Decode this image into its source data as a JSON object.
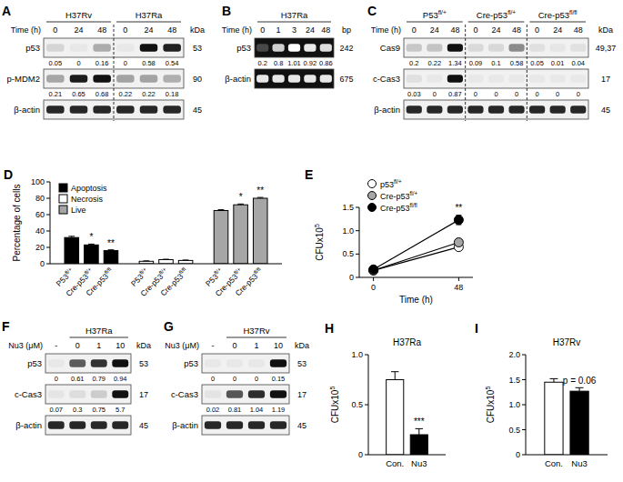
{
  "blots": [
    {
      "letter": "A",
      "type": "western_blot",
      "lane_label": "Time (h)",
      "unit_label": "kDa",
      "groups": [
        {
          "label": "H37Rv",
          "lanes": [
            0,
            24,
            48
          ]
        },
        {
          "label": "H37Ra",
          "lanes": [
            0,
            24,
            48
          ]
        }
      ],
      "rows": [
        {
          "name": "p53",
          "size": 53,
          "values": [
            0.05,
            0,
            0.16,
            0,
            0.58,
            0.54
          ]
        },
        {
          "name": "p-MDM2",
          "size": 90,
          "values": [
            0.21,
            0.65,
            0.68,
            0.22,
            0.22,
            0.18
          ]
        },
        {
          "name": "β-actin",
          "size": 45
        }
      ]
    },
    {
      "letter": "B",
      "type": "gel",
      "lane_label": "Time (h)",
      "unit_label": "bp",
      "groups": [
        {
          "label": "H37Ra",
          "lanes": [
            0,
            1,
            3,
            24,
            48
          ]
        }
      ],
      "rows": [
        {
          "name": "p53",
          "size": 242,
          "values": [
            0.2,
            0.8,
            1.01,
            0.92,
            0.86
          ]
        },
        {
          "name": "β-actin",
          "size": 675
        }
      ]
    },
    {
      "letter": "C",
      "type": "western_blot",
      "lane_label": "Time (h)",
      "unit_label": "kDa",
      "groups": [
        {
          "label": {
            "text": "P53",
            "sup": "fl/+"
          },
          "lanes": [
            0,
            24,
            48
          ]
        },
        {
          "label": {
            "text": "Cre-p53",
            "sup": "fl/+"
          },
          "lanes": [
            0,
            24,
            48
          ]
        },
        {
          "label": {
            "text": "Cre-p53",
            "sup": "fl/fl"
          },
          "lanes": [
            0,
            24,
            48
          ]
        }
      ],
      "rows": [
        {
          "name": "Cas9",
          "size": "49,37",
          "values": [
            0.2,
            0.22,
            1.34,
            0.09,
            0.1,
            0.58,
            0.05,
            0.01,
            0.04
          ]
        },
        {
          "name": "c-Cas3",
          "size": 17,
          "values": [
            0.03,
            0,
            0.87,
            0,
            0,
            0,
            0,
            0,
            0
          ]
        },
        {
          "name": "β-actin",
          "size": 45
        }
      ]
    },
    {
      "letter": "F",
      "type": "western_blot",
      "lane_label": "Nu3 (μM)",
      "unit_label": "kDa",
      "groups": [
        {
          "label": null,
          "lanes": [
            "-"
          ]
        },
        {
          "label": "H37Ra",
          "lanes": [
            0,
            1,
            10
          ]
        }
      ],
      "rows": [
        {
          "name": "p53",
          "size": 53,
          "values": [
            0,
            0.61,
            0.79,
            0.94
          ]
        },
        {
          "name": "c-Cas3",
          "size": 17,
          "values": [
            0.07,
            0.3,
            0.75,
            5.7
          ]
        },
        {
          "name": "β-actin",
          "size": 45
        }
      ]
    },
    {
      "letter": "G",
      "type": "western_blot",
      "lane_label": "Nu3 (μM)",
      "unit_label": "kDa",
      "groups": [
        {
          "label": null,
          "lanes": [
            "-"
          ]
        },
        {
          "label": "H37Rv",
          "lanes": [
            0,
            1,
            10
          ]
        }
      ],
      "rows": [
        {
          "name": "p53",
          "size": 53,
          "values": [
            0,
            0,
            0,
            0.15
          ]
        },
        {
          "name": "c-Cas3",
          "size": 17,
          "values": [
            0.02,
            0.81,
            1.04,
            1.19
          ]
        },
        {
          "name": "β-actin",
          "size": 45
        }
      ]
    }
  ],
  "chart_data": [
    {
      "letter": "D",
      "type": "bar",
      "y_label": "Percentage of cells",
      "categories": [
        {
          "text": "P53",
          "sup": "fl/+"
        },
        {
          "text": "Cre-p53",
          "sup": "fl/+"
        },
        {
          "text": "Cre-p53",
          "sup": "fl/fl"
        }
      ],
      "series": [
        {
          "name": "Apoptosis",
          "color": "#000000",
          "values": [
            32,
            23,
            16
          ],
          "errors": [
            1.5,
            1,
            1
          ],
          "annotations": [
            null,
            "*",
            "**"
          ]
        },
        {
          "name": "Necrosis",
          "color": "#ffffff",
          "values": [
            3,
            5,
            4
          ],
          "errors": [
            0.5,
            0.5,
            0.5
          ]
        },
        {
          "name": "Live",
          "color": "#a6a6a6",
          "values": [
            65,
            72,
            80
          ],
          "errors": [
            1,
            1,
            1
          ],
          "annotations": [
            null,
            "*",
            "**"
          ]
        }
      ],
      "ylim": [
        0,
        100
      ],
      "yticks": [
        0,
        20,
        40,
        60,
        80,
        100
      ],
      "legend": "top-left"
    },
    {
      "letter": "E",
      "type": "line",
      "x_label": "Time (h)",
      "y_label": {
        "text": "CFUx10",
        "sup": "5"
      },
      "x": [
        0,
        48
      ],
      "xlim": [
        -8,
        56
      ],
      "xticks": [
        0,
        48
      ],
      "ylim": [
        0,
        1.5
      ],
      "yticks": [
        0,
        0.5,
        {
          "value": 1,
          "label": "1.0"
        },
        1.5
      ],
      "series": [
        {
          "name": {
            "text": "p53",
            "sup": "fl/+"
          },
          "color": "#ffffff",
          "marker": "circle",
          "values": [
            0.15,
            0.65
          ],
          "errors": [
            0.02,
            0.05
          ]
        },
        {
          "name": {
            "text": "Cre-p53",
            "sup": "fl/+"
          },
          "color": "#a6a6a6",
          "marker": "circle",
          "values": [
            0.15,
            0.75
          ],
          "errors": [
            0.02,
            0.05
          ]
        },
        {
          "name": {
            "text": "Cre-p53",
            "sup": "fl/fl"
          },
          "color": "#000000",
          "marker": "circle",
          "values": [
            0.17,
            1.23
          ],
          "errors": [
            0.02,
            0.1
          ],
          "annotations": [
            null,
            "**"
          ]
        }
      ],
      "legend": "top-left"
    },
    {
      "letter": "H",
      "type": "bar",
      "title": "H37Ra",
      "y_label": {
        "text": "CFUx10",
        "sup": "5"
      },
      "categories": [
        "Con.",
        "Nu3"
      ],
      "values": [
        0.75,
        0.2
      ],
      "errors": [
        0.08,
        0.06
      ],
      "colors": [
        "#ffffff",
        "#000000"
      ],
      "annotations": [
        null,
        "***"
      ],
      "ylim": [
        0,
        1
      ],
      "yticks": [
        0,
        0.5,
        {
          "value": 1,
          "label": "1.0"
        }
      ]
    },
    {
      "letter": "I",
      "type": "bar",
      "title": "H37Rv",
      "y_label": {
        "text": "CFUx10",
        "sup": "5"
      },
      "categories": [
        "Con.",
        "Nu3"
      ],
      "values": [
        1.45,
        1.27
      ],
      "errors": [
        0.07,
        0.07
      ],
      "colors": [
        "#ffffff",
        "#000000"
      ],
      "annotations": [
        null,
        "p = 0.06"
      ],
      "ylim": [
        0,
        2
      ],
      "yticks": [
        0,
        0.5,
        {
          "value": 1,
          "label": "1.0"
        },
        1.5,
        {
          "value": 2,
          "label": "2.0"
        }
      ]
    }
  ]
}
